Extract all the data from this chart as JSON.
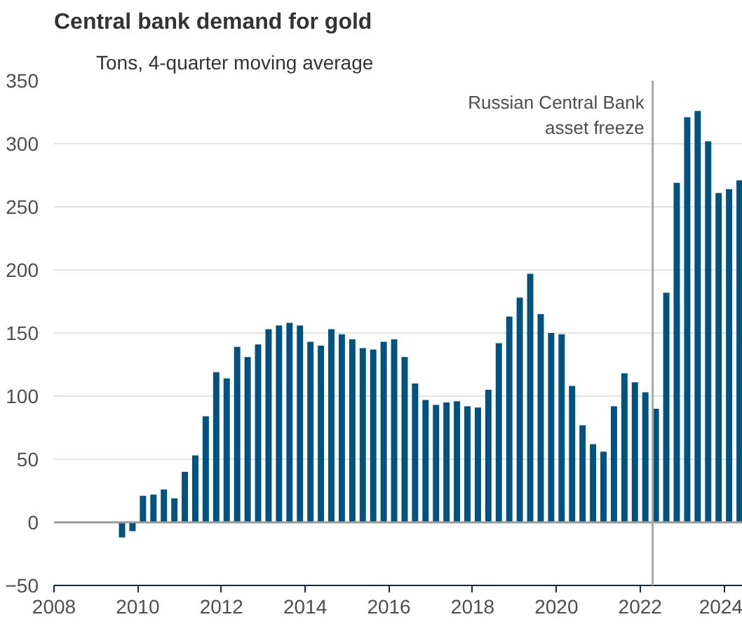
{
  "chart_data": {
    "type": "bar",
    "title": "Central bank demand for gold",
    "subtitle": "Tons, 4-quarter moving average",
    "x": [
      2009.625,
      2009.875,
      2010.125,
      2010.375,
      2010.625,
      2010.875,
      2011.125,
      2011.375,
      2011.625,
      2011.875,
      2012.125,
      2012.375,
      2012.625,
      2012.875,
      2013.125,
      2013.375,
      2013.625,
      2013.875,
      2014.125,
      2014.375,
      2014.625,
      2014.875,
      2015.125,
      2015.375,
      2015.625,
      2015.875,
      2016.125,
      2016.375,
      2016.625,
      2016.875,
      2017.125,
      2017.375,
      2017.625,
      2017.875,
      2018.125,
      2018.375,
      2018.625,
      2018.875,
      2019.125,
      2019.375,
      2019.625,
      2019.875,
      2020.125,
      2020.375,
      2020.625,
      2020.875,
      2021.125,
      2021.375,
      2021.625,
      2021.875,
      2022.125,
      2022.375,
      2022.625,
      2022.875,
      2023.125,
      2023.375,
      2023.625,
      2023.875,
      2024.125,
      2024.375
    ],
    "series": [
      {
        "color": "#00537f",
        "values": [
          -12,
          -7,
          21,
          22,
          26,
          19,
          40,
          53,
          84,
          119,
          114,
          139,
          131,
          141,
          153,
          156,
          158,
          156,
          143,
          140,
          153,
          149,
          145,
          138,
          137,
          143,
          145,
          131,
          110,
          97,
          93,
          95,
          96,
          92,
          91,
          105,
          142,
          163,
          178,
          197,
          165,
          150,
          149,
          108,
          77,
          62,
          56,
          92,
          118,
          111,
          103,
          90,
          182,
          269,
          321,
          326,
          302,
          261,
          264,
          271
        ]
      }
    ],
    "xlim": [
      2008,
      2024.45
    ],
    "xticks": [
      2008,
      2010,
      2012,
      2014,
      2016,
      2018,
      2020,
      2022,
      2024
    ],
    "ylim": [
      -50,
      350
    ],
    "yticks": [
      -50,
      0,
      50,
      100,
      150,
      200,
      250,
      300,
      350
    ],
    "grid": "y",
    "ref_lines": [
      {
        "axis": "x",
        "value": 2022.3,
        "label": "Russian Central Bank\nasset freeze",
        "color": "#a6a6a6"
      }
    ]
  }
}
